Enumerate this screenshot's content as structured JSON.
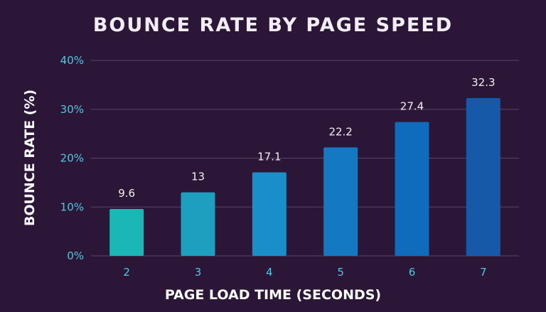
{
  "chart_data": {
    "type": "bar",
    "title": "BOUNCE RATE BY PAGE SPEED",
    "xlabel": "PAGE LOAD TIME (SECONDS)",
    "ylabel": "BOUNCE RATE (%)",
    "categories": [
      "2",
      "3",
      "4",
      "5",
      "6",
      "7"
    ],
    "values": [
      9.6,
      13,
      17.1,
      22.2,
      27.4,
      32.3
    ],
    "data_labels": [
      "9.6",
      "13",
      "17.1",
      "22.2",
      "27.4",
      "32.3"
    ],
    "ylim": [
      0,
      40
    ],
    "y_ticks": [
      0,
      10,
      20,
      30,
      40
    ],
    "y_tick_labels": [
      "0%",
      "10%",
      "20%",
      "30%",
      "40%"
    ],
    "grid": true,
    "legend": "none",
    "colors": {
      "background": "#2b1638",
      "grid": "#5a4468",
      "tick_label": "#4cc9e0",
      "data_label": "#f0f0f0",
      "bars": [
        "#1bb6b6",
        "#1d9fc0",
        "#1a8ec8",
        "#1478c2",
        "#0f6bbc",
        "#1559a8"
      ]
    }
  }
}
